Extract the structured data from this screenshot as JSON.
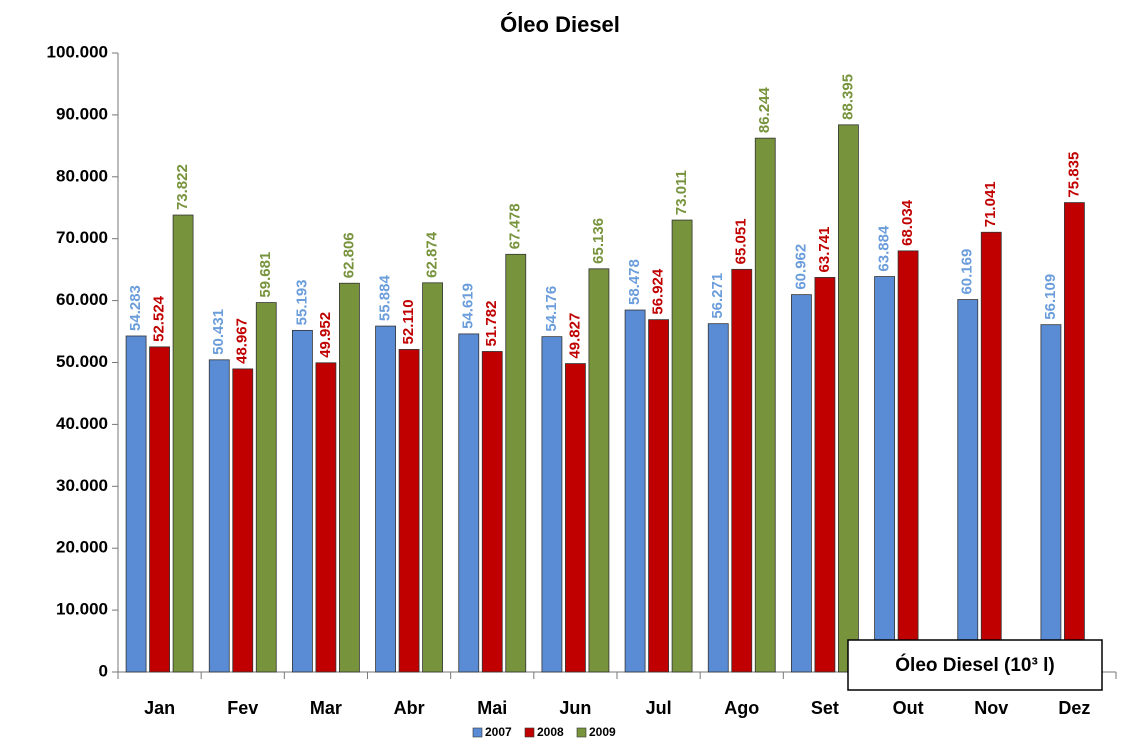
{
  "chart_data": {
    "type": "bar",
    "title": "Óleo Diesel",
    "categories": [
      "Jan",
      "Fev",
      "Mar",
      "Abr",
      "Mai",
      "Jun",
      "Jul",
      "Ago",
      "Set",
      "Out",
      "Nov",
      "Dez"
    ],
    "series": [
      {
        "name": "2007",
        "color": "#5a8cd6",
        "label_color": "#6b9ddb",
        "values": [
          54283,
          50431,
          55193,
          55884,
          54619,
          54176,
          58478,
          56271,
          60962,
          63884,
          60169,
          56109
        ],
        "value_labels": [
          "54.283",
          "50.431",
          "55.193",
          "55.884",
          "54.619",
          "54.176",
          "58.478",
          "56.271",
          "60.962",
          "63.884",
          "60.169",
          "56.109"
        ]
      },
      {
        "name": "2008",
        "color": "#c00000",
        "label_color": "#c00000",
        "values": [
          52524,
          48967,
          49952,
          52110,
          51782,
          49827,
          56924,
          65051,
          63741,
          68034,
          71041,
          75835
        ],
        "value_labels": [
          "52.524",
          "48.967",
          "49.952",
          "52.110",
          "51.782",
          "49.827",
          "56.924",
          "65.051",
          "63.741",
          "68.034",
          "71.041",
          "75.835"
        ]
      },
      {
        "name": "2009",
        "color": "#77933c",
        "label_color": "#77933c",
        "values": [
          73822,
          59681,
          62806,
          62874,
          67478,
          65136,
          73011,
          86244,
          88395,
          null,
          null,
          null
        ],
        "value_labels": [
          "73.822",
          "59.681",
          "62.806",
          "62.874",
          "67.478",
          "65.136",
          "73.011",
          "86.244",
          "88.395",
          null,
          null,
          null
        ]
      }
    ],
    "ylim": [
      0,
      100000
    ],
    "yticks": [
      0,
      {
        "value": 10000,
        "label": "10.000"
      },
      {
        "value": 20000,
        "label": "20.000"
      },
      {
        "value": 30000,
        "label": "30.000"
      },
      {
        "value": 40000,
        "label": "40.000"
      },
      {
        "value": 50000,
        "label": "50.000"
      },
      {
        "value": 60000,
        "label": "60.000"
      },
      {
        "value": 70000,
        "label": "70.000"
      },
      {
        "value": 80000,
        "label": "80.000"
      },
      {
        "value": 90000,
        "label": "90.000"
      },
      {
        "value": 100000,
        "label": "100.000"
      }
    ],
    "annotation": "Óleo Diesel (10³ l)",
    "legend": "bottom"
  }
}
